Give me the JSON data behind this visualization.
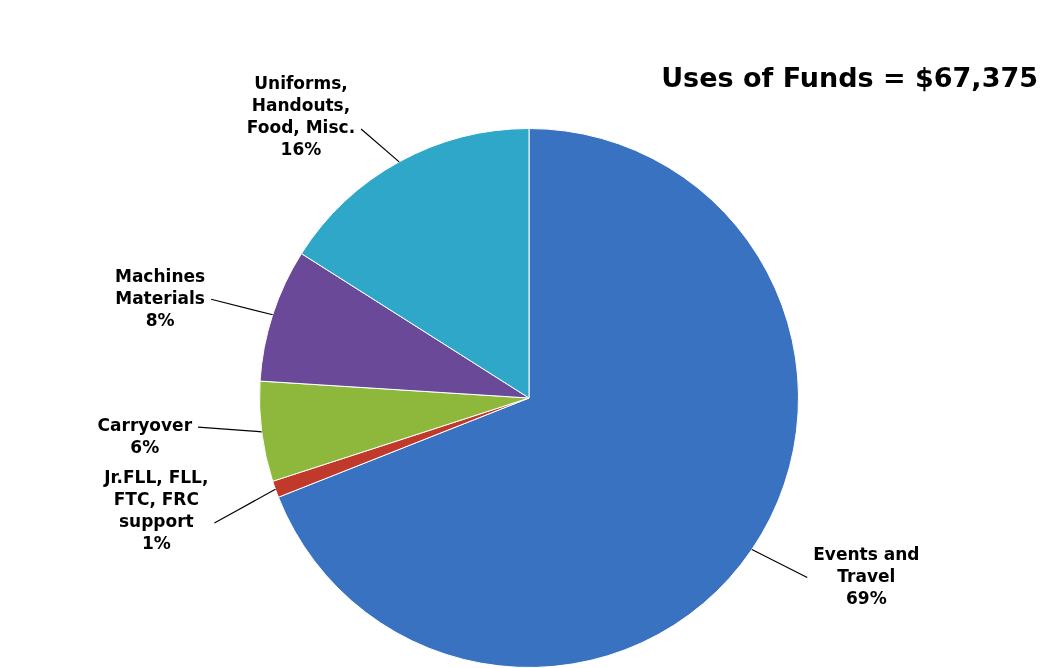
{
  "chart_data": {
    "type": "pie",
    "title": "Uses of Funds = $67,375",
    "categories": [
      "Events and Travel",
      "Jr.FLL, FLL, FTC, FRC support",
      "Carryover",
      "Machines Materials",
      "Uniforms, Handouts, Food, Misc."
    ],
    "values": [
      69,
      1,
      6,
      8,
      16
    ],
    "value_labels": [
      "69%",
      "1%",
      "6%",
      "8%",
      "16%"
    ],
    "colors": [
      "#3a72c2",
      "#c0392b",
      "#8db83c",
      "#6a4a98",
      "#2ea7c9"
    ],
    "legend": false
  }
}
